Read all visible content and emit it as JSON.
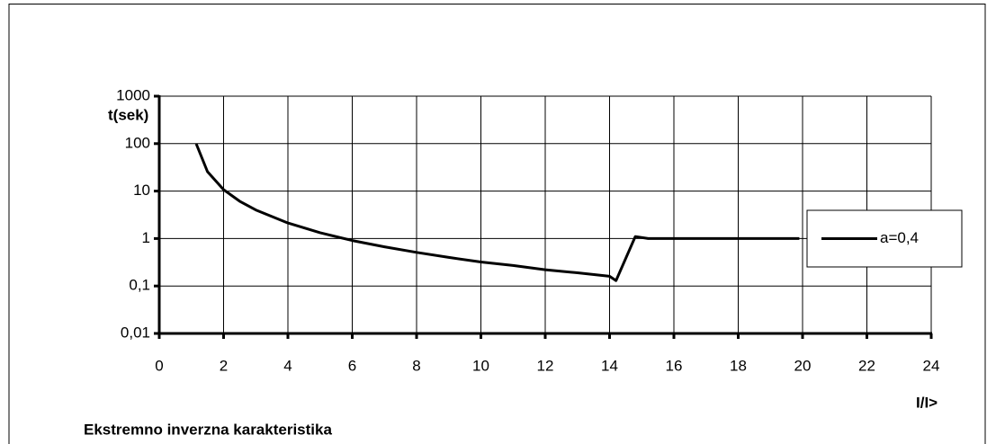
{
  "chart_data": {
    "type": "line",
    "caption": "Ekstremno inverzna karakteristika",
    "x_label": "I/I>",
    "y_label": "t(sek)",
    "x": [
      1.15,
      1.5,
      2,
      2.5,
      3,
      4,
      5,
      6,
      7,
      8,
      9,
      10,
      11,
      12,
      13,
      14,
      14.2,
      14.8,
      15.2,
      16,
      18,
      19.9
    ],
    "series": [
      {
        "name": "a=0,4",
        "color": "#000000",
        "values": [
          99,
          25.6,
          10.7,
          6.1,
          4,
          2.13,
          1.33,
          0.91,
          0.67,
          0.51,
          0.4,
          0.32,
          0.27,
          0.22,
          0.19,
          0.16,
          0.13,
          1.1,
          1,
          1,
          1,
          1
        ]
      }
    ],
    "xlim": [
      0,
      24
    ],
    "xticks": [
      0,
      2,
      4,
      6,
      8,
      10,
      12,
      14,
      16,
      18,
      20,
      22,
      24
    ],
    "ylim": [
      0.01,
      1000
    ],
    "yticks": [
      {
        "value": 0.01,
        "label": "0,01"
      },
      {
        "value": 0.1,
        "label": "0,1"
      },
      1,
      10,
      100,
      1000
    ],
    "log_y": true,
    "grid": true,
    "legend": "right"
  }
}
